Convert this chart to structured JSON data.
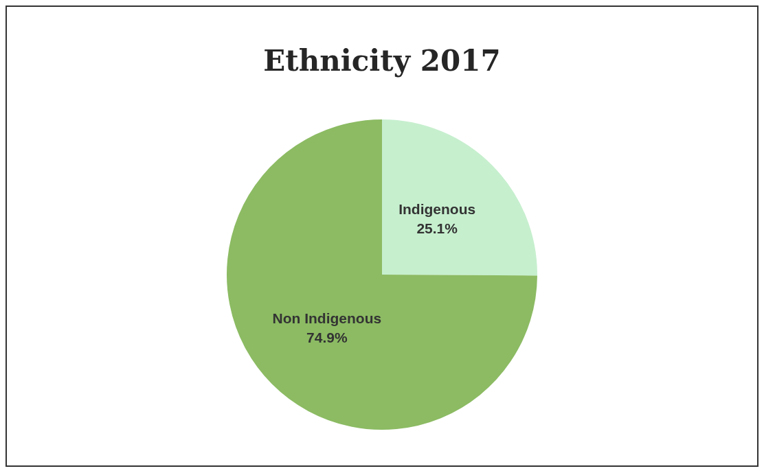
{
  "chart_data": {
    "type": "pie",
    "title": "Ethnicity 2017",
    "categories": [
      "Indigenous",
      "Non Indigenous"
    ],
    "values": [
      25.1,
      74.9
    ],
    "value_labels": [
      "25.1%",
      "74.9%"
    ],
    "colors": [
      "#c6efce",
      "#8cbb63"
    ],
    "legend": false
  }
}
